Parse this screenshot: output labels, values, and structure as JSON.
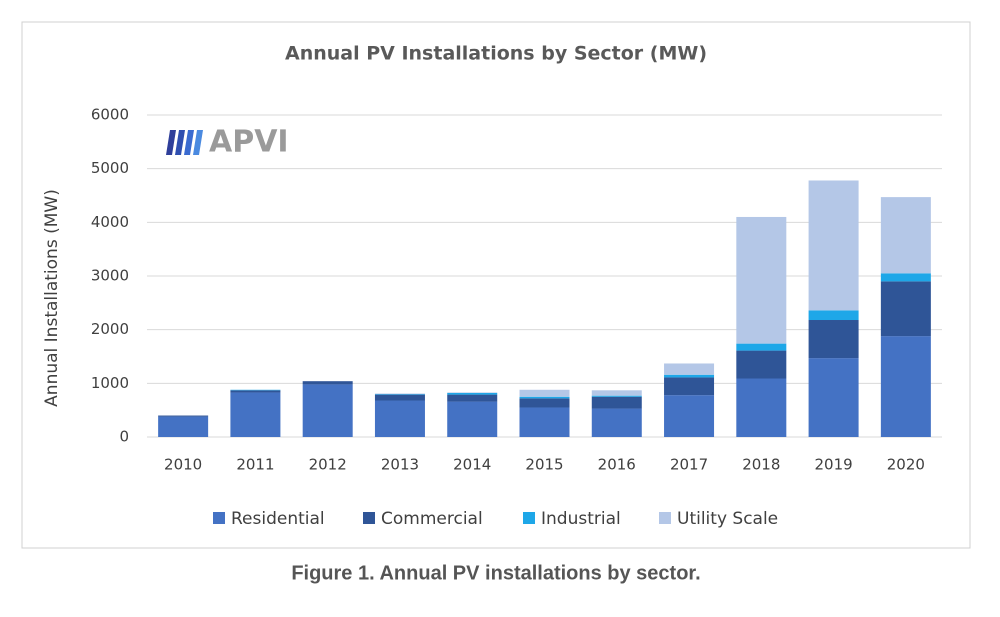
{
  "chart_data": {
    "type": "bar",
    "stacked": true,
    "title": "Annual PV Installations by Sector (MW)",
    "y_label": "Annual Installations (MW)",
    "logo": "APVI",
    "caption": "Figure 1. Annual PV installations by sector.",
    "categories": [
      "2010",
      "2011",
      "2012",
      "2013",
      "2014",
      "2015",
      "2016",
      "2017",
      "2018",
      "2019",
      "2020"
    ],
    "series": [
      {
        "name": "Residential",
        "color": "#4472c4",
        "values": [
          380,
          830,
          980,
          680,
          660,
          550,
          530,
          780,
          1090,
          1470,
          1880
        ]
      },
      {
        "name": "Commercial",
        "color": "#2f5597",
        "values": [
          20,
          40,
          60,
          110,
          130,
          170,
          220,
          330,
          520,
          710,
          1020
        ]
      },
      {
        "name": "Industrial",
        "color": "#1ea7e8",
        "values": [
          0,
          10,
          0,
          10,
          30,
          30,
          20,
          50,
          130,
          180,
          150
        ]
      },
      {
        "name": "Utility Scale",
        "color": "#b4c7e7",
        "values": [
          0,
          0,
          0,
          10,
          10,
          130,
          100,
          210,
          2360,
          2420,
          1420
        ]
      }
    ],
    "ylim": [
      0,
      6000
    ],
    "yticks": [
      0,
      1000,
      2000,
      3000,
      4000,
      5000,
      6000
    ],
    "grid": true,
    "legend": "bottom"
  }
}
